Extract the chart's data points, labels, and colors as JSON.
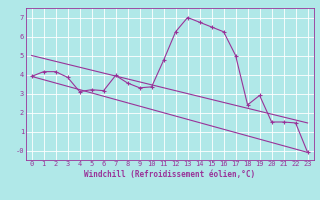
{
  "xlabel": "Windchill (Refroidissement éolien,°C)",
  "background_color": "#b0e8e8",
  "grid_color": "#ffffff",
  "line_color": "#993399",
  "xlim": [
    -0.5,
    23.5
  ],
  "ylim": [
    -0.5,
    7.5
  ],
  "xticks": [
    0,
    1,
    2,
    3,
    4,
    5,
    6,
    7,
    8,
    9,
    10,
    11,
    12,
    13,
    14,
    15,
    16,
    17,
    18,
    19,
    20,
    21,
    22,
    23
  ],
  "yticks": [
    0,
    1,
    2,
    3,
    4,
    5,
    6,
    7
  ],
  "ytick_labels": [
    "-0",
    "1",
    "2",
    "3",
    "4",
    "5",
    "6",
    "7"
  ],
  "series1_x": [
    0,
    1,
    2,
    3,
    4,
    5,
    6,
    7,
    8,
    9,
    10,
    11,
    12,
    13,
    14,
    15,
    16,
    17,
    18,
    19,
    20,
    21,
    22,
    23
  ],
  "series1_y": [
    3.9,
    4.15,
    4.15,
    3.85,
    3.1,
    3.2,
    3.15,
    3.95,
    3.55,
    3.3,
    3.35,
    4.75,
    6.25,
    7.0,
    6.75,
    6.5,
    6.25,
    5.0,
    2.4,
    2.9,
    1.5,
    1.5,
    1.45,
    -0.1
  ],
  "series2_x": [
    0,
    23
  ],
  "series2_y": [
    3.9,
    -0.1
  ],
  "series3_x": [
    0,
    23
  ],
  "series3_y": [
    5.0,
    1.45
  ],
  "lw": 0.8,
  "markersize": 2.5,
  "tick_fontsize": 5.0,
  "xlabel_fontsize": 5.5
}
